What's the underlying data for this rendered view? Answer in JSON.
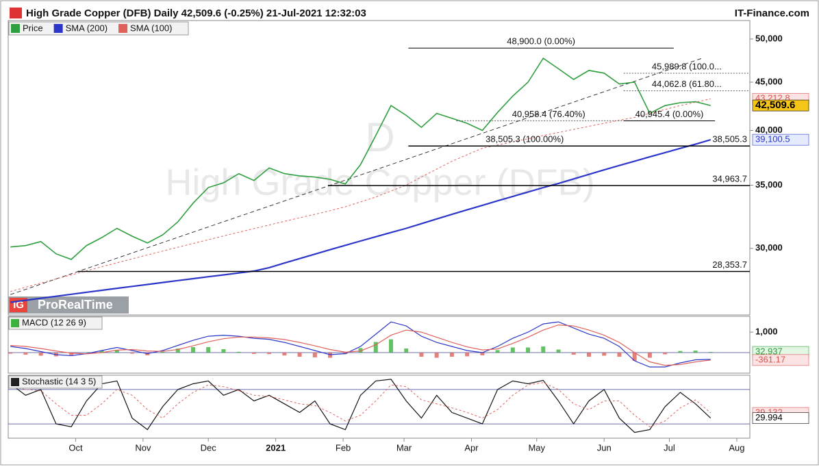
{
  "header": {
    "title": "High Grade Copper (DFB) Daily 42,509.6 (-0.25%) 21-Jul-2021 12:32:03",
    "brand": "IT-Finance.com",
    "logo_mark": "IG",
    "logo": "ProRealTime"
  },
  "chart_data": [
    {
      "type": "line",
      "watermark": "High Grade Copper (DFB)",
      "watermark_period": "D",
      "log_scale": true,
      "legend": true,
      "x": [
        0,
        7,
        14,
        21,
        28,
        35,
        42,
        49,
        56,
        63,
        70,
        77,
        84,
        91,
        98,
        105,
        112,
        119,
        126,
        133,
        140,
        147,
        154,
        161,
        168,
        175,
        182,
        189,
        196,
        203,
        210,
        217,
        224,
        231,
        238,
        245,
        252,
        259,
        266,
        273,
        280,
        287,
        294,
        301,
        308,
        315,
        322
      ],
      "xlim": [
        -1,
        340
      ],
      "xticks": [
        {
          "value": 30,
          "label": "Oct"
        },
        {
          "value": 61,
          "label": "Nov"
        },
        {
          "value": 91,
          "label": "Dec"
        },
        {
          "value": 122,
          "label": "2021",
          "bold": true
        },
        {
          "value": 153,
          "label": "Feb"
        },
        {
          "value": 181,
          "label": "Mar"
        },
        {
          "value": 212,
          "label": "Apr"
        },
        {
          "value": 242,
          "label": "May"
        },
        {
          "value": 273,
          "label": "Jun"
        },
        {
          "value": 303,
          "label": "Jul"
        },
        {
          "value": 334,
          "label": "Aug"
        }
      ],
      "ylim": [
        25500,
        52300
      ],
      "yticks": [
        {
          "value": 30000,
          "label": "30,000"
        },
        {
          "value": 35000,
          "label": "35,000"
        },
        {
          "value": 40000,
          "label": "40,000"
        },
        {
          "value": 45000,
          "label": "45,000"
        },
        {
          "value": 50000,
          "label": "50,000"
        }
      ],
      "series": [
        {
          "name": "Price",
          "color": "#2e9e3e",
          "width": 1.6,
          "values": [
            30100,
            30200,
            30500,
            29600,
            29200,
            30200,
            30800,
            31500,
            30900,
            30400,
            31000,
            32000,
            33500,
            34800,
            35200,
            36000,
            35400,
            36500,
            36000,
            35800,
            35700,
            35500,
            35100,
            36800,
            39500,
            42500,
            41500,
            40300,
            41700,
            41200,
            40700,
            40000,
            41800,
            43500,
            45000,
            47700,
            46500,
            45300,
            46300,
            46000,
            44800,
            45000,
            41700,
            42500,
            42800,
            42900,
            42509.6
          ]
        },
        {
          "name": "SMA (200)",
          "color": "#2b35c8",
          "width": 2.2,
          "values": [
            26300,
            26430,
            26560,
            26690,
            26820,
            26950,
            27080,
            27210,
            27340,
            27470,
            27600,
            27730,
            27860,
            27990,
            28120,
            28250,
            28380,
            28620,
            28940,
            29260,
            29580,
            29900,
            30220,
            30540,
            30860,
            31180,
            31500,
            31860,
            32230,
            32590,
            32960,
            33320,
            33690,
            34050,
            34420,
            34790,
            35150,
            35540,
            35930,
            36330,
            36720,
            37110,
            37500,
            37890,
            38290,
            38680,
            39100.5
          ]
        },
        {
          "name": "SMA (100)",
          "color": "#e0605a",
          "width": 1,
          "dash": true,
          "values": [
            27000,
            27280,
            27560,
            27840,
            28120,
            28400,
            28680,
            28960,
            29240,
            29520,
            29800,
            30080,
            30360,
            30640,
            30920,
            31200,
            31480,
            31760,
            32040,
            32320,
            32600,
            32880,
            33200,
            33600,
            34000,
            34500,
            35000,
            35700,
            36400,
            37100,
            37700,
            38300,
            38600,
            38900,
            39200,
            39500,
            39800,
            40100,
            40400,
            40700,
            41000,
            41300,
            41700,
            42100,
            42500,
            42850,
            43212.8
          ]
        }
      ],
      "trendline": {
        "x": [
          0,
          318
        ],
        "y": [
          26800,
          47700
        ]
      },
      "levels": [
        {
          "value": 38505.3,
          "label": "38,505.3",
          "start": 183
        },
        {
          "value": 34963.7,
          "label": "34,963.7",
          "start": 146
        },
        {
          "value": 28353.7,
          "label": "28,353.7",
          "start": 31
        }
      ],
      "fibs": [
        {
          "value": 48900,
          "label": "48,900.0 (0.00%)",
          "x": [
            183,
            305
          ]
        },
        {
          "value": 45989.8,
          "label": "45,989.8 (100.0...",
          "x": [
            282,
            340
          ],
          "dotted": true
        },
        {
          "value": 44062.8,
          "label": "44,062.8 (61.80...",
          "x": [
            282,
            340
          ],
          "dotted": true
        },
        {
          "value": 40958.4,
          "label": "40,958.4 (76.40%)",
          "x": [
            205,
            290
          ],
          "dotted": true
        },
        {
          "value": 40945.4,
          "label": "40,945.4 (0.00%)",
          "x": [
            282,
            324
          ]
        },
        {
          "value": 38505.3,
          "label": "38,505.3 (100.00%)",
          "x": [
            183,
            290
          ]
        }
      ],
      "last_labels": [
        {
          "value": 43212.8,
          "label": "43,212.8",
          "color": "#d9534f",
          "bg": "#fde4e4"
        },
        {
          "value": 42509.6,
          "label": "42,509.6",
          "color": "#000000",
          "bg": "#f5c518",
          "bold": true
        },
        {
          "value": 39100.5,
          "label": "39,100.5",
          "color": "#2b35c8",
          "bg": "#e6ecff"
        }
      ]
    },
    {
      "type": "line",
      "title": "MACD (12 26 9)",
      "ylim": [
        -1000,
        1770
      ],
      "yticks": [
        {
          "value": 1000,
          "label": "1,000"
        }
      ],
      "bands": [
        0
      ],
      "histogram": {
        "up_color": "#3db33d",
        "down_color": "#e0605a",
        "values": [
          -50,
          -100,
          -150,
          -180,
          -120,
          10,
          100,
          130,
          -50,
          -130,
          40,
          200,
          270,
          270,
          170,
          40,
          -60,
          -70,
          -140,
          -200,
          -230,
          -250,
          -70,
          220,
          520,
          650,
          200,
          -200,
          -250,
          -200,
          -180,
          -130,
          120,
          250,
          250,
          300,
          150,
          -100,
          -200,
          -150,
          -200,
          -400,
          -250,
          -80,
          80,
          100,
          32.937
        ]
      },
      "series": [
        {
          "color": "#2b35c8",
          "width": 1.2,
          "values": [
            300,
            200,
            50,
            -100,
            -150,
            -50,
            100,
            250,
            100,
            -50,
            100,
            350,
            600,
            800,
            850,
            800,
            700,
            650,
            500,
            300,
            100,
            -100,
            -50,
            300,
            900,
            1500,
            1300,
            800,
            500,
            300,
            100,
            0,
            300,
            700,
            1000,
            1400,
            1500,
            1200,
            900,
            700,
            300,
            -400,
            -700,
            -700,
            -500,
            -350,
            -328.2
          ]
        },
        {
          "color": "#e0605a",
          "width": 1.2,
          "values": [
            350,
            300,
            200,
            80,
            -30,
            -60,
            0,
            120,
            150,
            80,
            60,
            150,
            330,
            530,
            680,
            760,
            760,
            720,
            640,
            500,
            330,
            150,
            20,
            80,
            380,
            850,
            1100,
            1000,
            750,
            500,
            280,
            130,
            180,
            450,
            750,
            1100,
            1350,
            1300,
            1100,
            850,
            500,
            0,
            -450,
            -620,
            -580,
            -450,
            -361.17
          ]
        }
      ],
      "last_labels": [
        {
          "value": 32.937,
          "label": "32.937",
          "color": "#2e9e3e",
          "bg": "#e4f6e4"
        },
        {
          "value": -361.17,
          "label": "-361.17",
          "color": "#d9534f",
          "bg": "#fde4e4"
        }
      ]
    },
    {
      "type": "line",
      "title": "Stochastic (14 3 5)",
      "ylim": [
        -5,
        105
      ],
      "yticks": [],
      "bands": [
        20,
        80
      ],
      "series": [
        {
          "color": "#111111",
          "width": 1.2,
          "values": [
            90,
            70,
            80,
            20,
            15,
            60,
            90,
            95,
            30,
            10,
            50,
            80,
            90,
            95,
            70,
            80,
            60,
            70,
            55,
            40,
            60,
            20,
            10,
            70,
            95,
            98,
            60,
            30,
            70,
            40,
            30,
            20,
            80,
            95,
            90,
            96,
            60,
            20,
            60,
            80,
            30,
            5,
            10,
            50,
            75,
            55,
            29.994
          ]
        },
        {
          "color": "#e0605a",
          "width": 1,
          "dash": true,
          "values": [
            85,
            80,
            78,
            55,
            35,
            35,
            55,
            80,
            70,
            45,
            30,
            55,
            75,
            88,
            85,
            78,
            70,
            68,
            62,
            55,
            52,
            40,
            25,
            35,
            60,
            88,
            85,
            62,
            55,
            48,
            40,
            30,
            45,
            70,
            88,
            92,
            80,
            55,
            45,
            60,
            60,
            35,
            15,
            25,
            48,
            62,
            39.132
          ]
        }
      ],
      "last_labels": [
        {
          "value": 39.132,
          "label": "39.132",
          "color": "#d9534f",
          "bg": "#fde4e4"
        },
        {
          "value": 29.994,
          "label": "29.994",
          "color": "#000000",
          "bg": "#ffffff"
        }
      ]
    }
  ]
}
